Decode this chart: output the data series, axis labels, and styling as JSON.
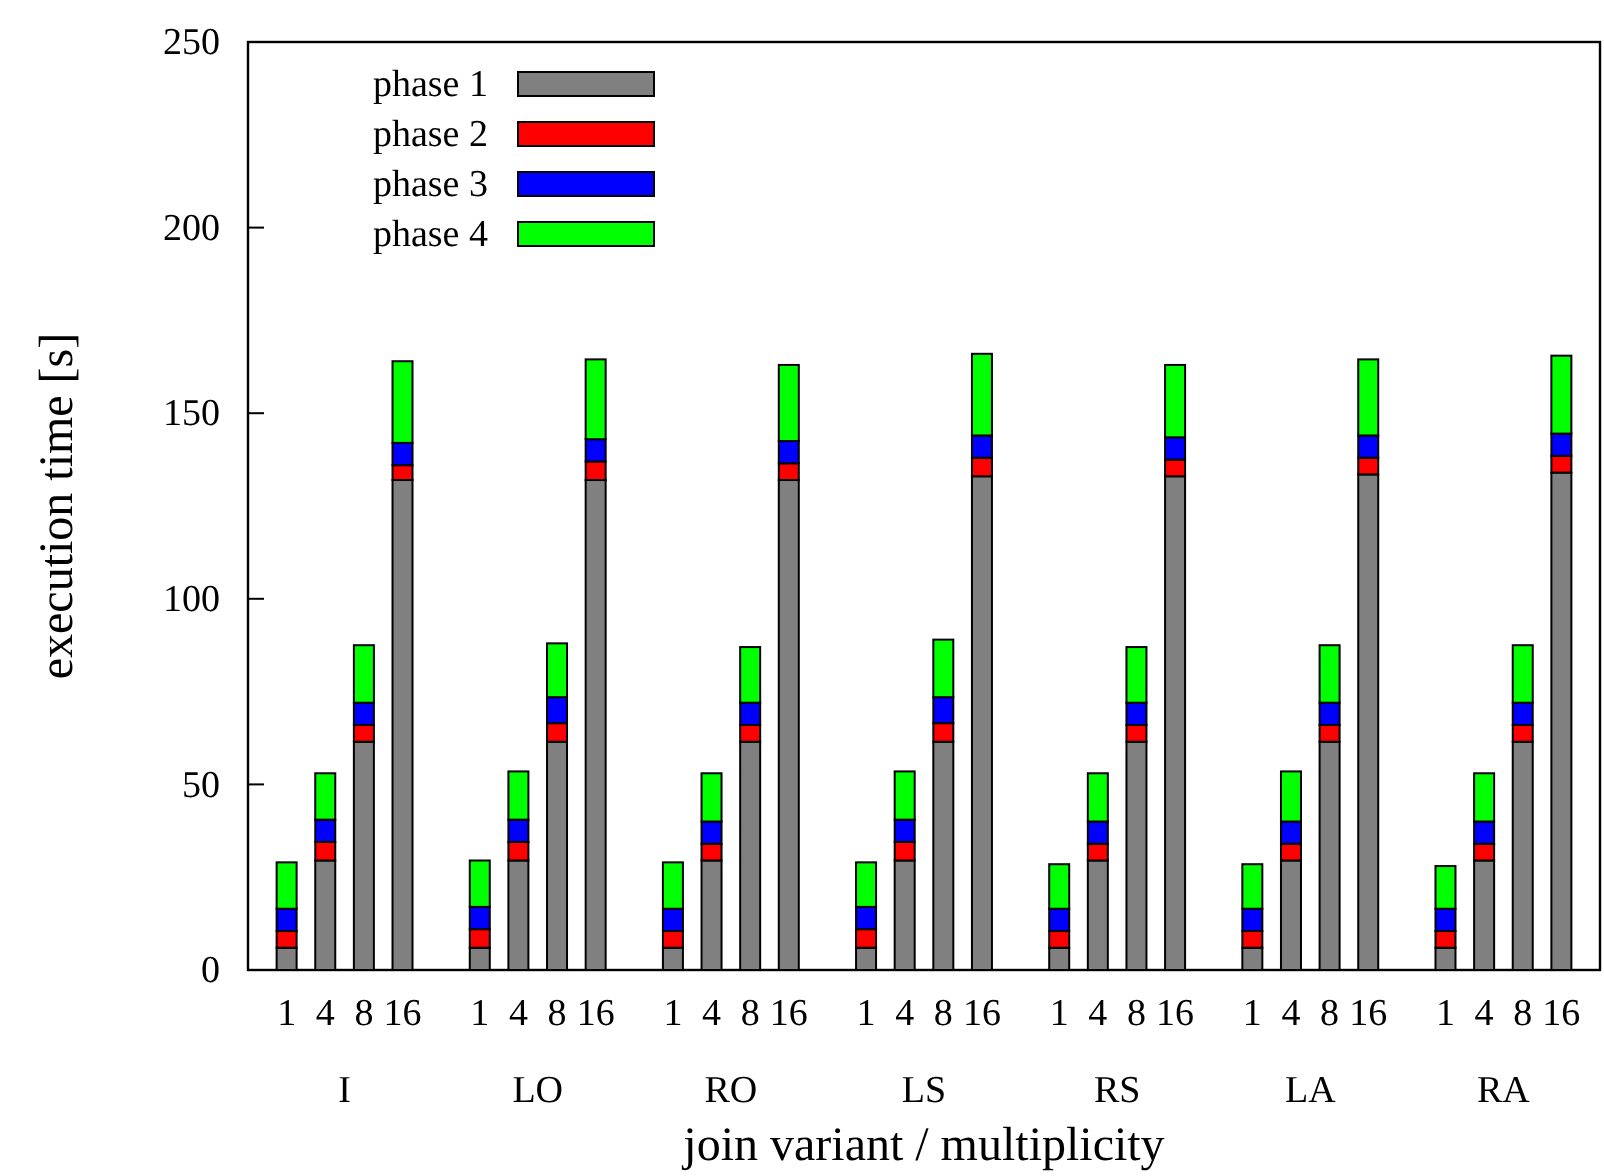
{
  "chart_data": {
    "type": "bar",
    "stacked": true,
    "xlabel": "join variant / multiplicity",
    "ylabel": "execution time [s]",
    "categories": [
      "1",
      "4",
      "8",
      "16",
      null,
      "1",
      "4",
      "8",
      "16",
      null,
      "1",
      "4",
      "8",
      "16",
      null,
      "1",
      "4",
      "8",
      "16",
      null,
      "1",
      "4",
      "8",
      "16",
      null,
      "1",
      "4",
      "8",
      "16",
      null,
      "1",
      "4",
      "8",
      "16"
    ],
    "series": [
      {
        "name": "phase 1",
        "color": "#808080",
        "values": [
          6,
          29.5,
          61.5,
          132,
          null,
          6,
          29.5,
          61.5,
          132,
          null,
          6,
          29.5,
          61.5,
          132,
          null,
          6,
          29.5,
          61.5,
          133,
          null,
          6,
          29.5,
          61.5,
          133,
          null,
          6,
          29.5,
          61.5,
          133.5,
          null,
          6,
          29.5,
          61.5,
          134
        ]
      },
      {
        "name": "phase 2",
        "color": "#ff0000",
        "values": [
          4.5,
          5,
          4.5,
          4,
          null,
          5,
          5,
          5,
          5,
          null,
          4.5,
          4.5,
          4.5,
          4.5,
          null,
          5,
          5,
          5,
          5,
          null,
          4.5,
          4.5,
          4.5,
          4.5,
          null,
          4.5,
          4.5,
          4.5,
          4.5,
          null,
          4.5,
          4.5,
          4.5,
          4.5
        ]
      },
      {
        "name": "phase 3",
        "color": "#0000ff",
        "values": [
          6,
          6,
          6,
          6,
          null,
          6,
          6,
          7,
          6,
          null,
          6,
          6,
          6,
          6,
          null,
          6,
          6,
          7,
          6,
          null,
          6,
          6,
          6,
          6,
          null,
          6,
          6,
          6,
          6,
          null,
          6,
          6,
          6,
          6
        ]
      },
      {
        "name": "phase 4",
        "color": "#00ff00",
        "values": [
          12.5,
          12.5,
          15.5,
          22,
          null,
          12.5,
          13,
          14.5,
          21.5,
          null,
          12.5,
          13,
          15,
          20.5,
          null,
          12,
          13,
          15.5,
          22,
          null,
          12,
          13,
          15,
          19.5,
          null,
          12,
          13.5,
          15.5,
          20.5,
          null,
          11.5,
          13,
          15.5,
          21
        ]
      }
    ],
    "annotations": [
      "I",
      "LO",
      "RO",
      "LS",
      "RS",
      "LA",
      "RA"
    ],
    "ylim": [
      0,
      250
    ],
    "yticks": [
      0,
      50,
      100,
      150,
      200,
      250
    ],
    "grid": false,
    "legend": "top left"
  }
}
